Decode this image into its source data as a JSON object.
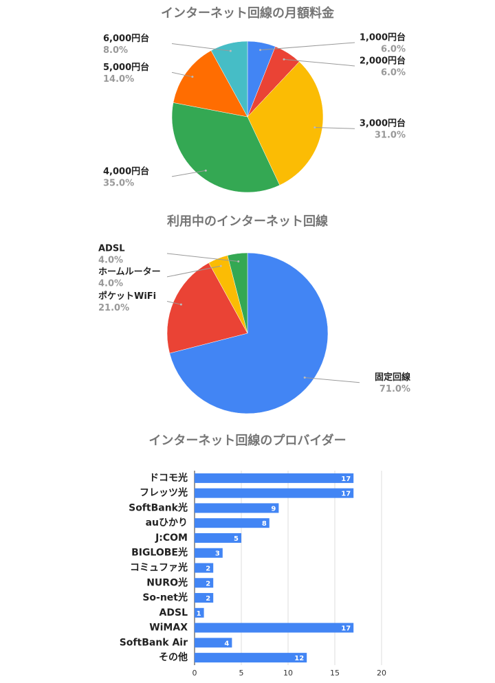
{
  "chart_data": [
    {
      "type": "pie",
      "title": "インターネット回線の月額料金",
      "categories": [
        "1,000円台",
        "2,000円台",
        "3,000円台",
        "4,000円台",
        "5,000円台",
        "6,000円台"
      ],
      "values": [
        6,
        6,
        31,
        35,
        14,
        8
      ],
      "value_labels": [
        "6.0%",
        "6.0%",
        "31.0%",
        "35.0%",
        "14.0%",
        "8.0%"
      ],
      "colors": [
        "#4285f4",
        "#ea4335",
        "#fbbc04",
        "#34a853",
        "#ff6d01",
        "#46bdc6"
      ]
    },
    {
      "type": "pie",
      "title": "利用中のインターネット回線",
      "categories": [
        "固定回線",
        "ポケットWiFi",
        "ホームルーター",
        "ADSL"
      ],
      "values": [
        71,
        21,
        4,
        4
      ],
      "value_labels": [
        "71.0%",
        "21.0%",
        "4.0%",
        "4.0%"
      ],
      "colors": [
        "#4285f4",
        "#ea4335",
        "#fbbc04",
        "#34a853"
      ]
    },
    {
      "type": "hbar",
      "title": "インターネット回線のプロバイダー",
      "categories": [
        "ドコモ光",
        "フレッツ光",
        "SoftBank光",
        "auひかり",
        "J:COM",
        "BIGLOBE光",
        "コミュファ光",
        "NURO光",
        "So-net光",
        "ADSL",
        "WiMAX",
        "SoftBank Air",
        "その他"
      ],
      "values": [
        17,
        17,
        9,
        8,
        5,
        3,
        2,
        2,
        2,
        1,
        17,
        4,
        12
      ],
      "color": "#4285f4",
      "xlim": [
        0,
        20
      ],
      "xticks": [
        0,
        5,
        10,
        15,
        20
      ],
      "grid": true
    }
  ]
}
